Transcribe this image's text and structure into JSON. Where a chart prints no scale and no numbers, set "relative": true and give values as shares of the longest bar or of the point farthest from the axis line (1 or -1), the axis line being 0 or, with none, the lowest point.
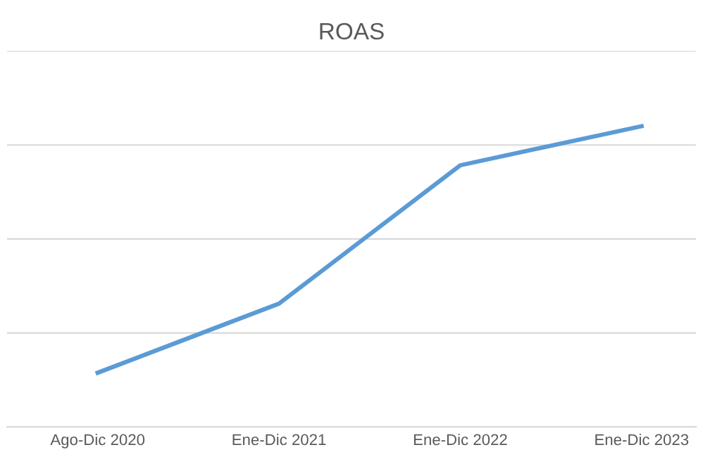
{
  "chart_data": {
    "type": "line",
    "title": "ROAS",
    "categories": [
      "Ago-Dic 2020",
      "Ene-Dic 2021",
      "Ene-Dic 2022",
      "Ene-Dic 2023"
    ],
    "series": [
      {
        "color": "#5b9bd5",
        "values": [
          0.18,
          0.41,
          0.87,
          1
        ]
      }
    ],
    "relative": true,
    "grid": "y",
    "tick_labels": "x"
  }
}
